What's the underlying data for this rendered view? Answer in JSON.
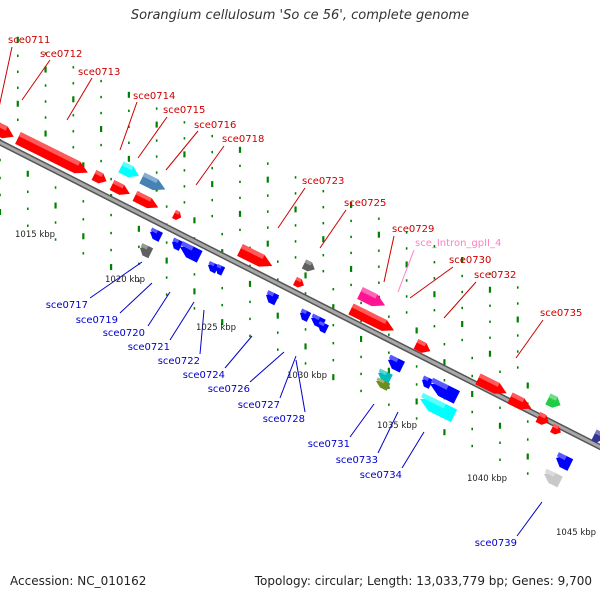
{
  "title": "Sorangium cellulosum 'So ce 56', complete genome",
  "footer": {
    "accession": "Accession: NC_010162",
    "info": "Topology: circular; Length: 13,033,779 bp; Genes: 9,700"
  },
  "colors": {
    "forward": "#ff0000",
    "reverse": "#0000ff",
    "backbone": "#808080",
    "tick": "#008000",
    "label_forward": "#cc0000",
    "label_reverse": "#0000cc",
    "label_intron": "#ff80c0"
  },
  "scale_labels": [
    "1015 kbp",
    "1020 kbp",
    "1025 kbp",
    "1030 kbp",
    "1035 kbp",
    "1040 kbp",
    "1045 kbp"
  ],
  "forward_genes": [
    "sce0711",
    "sce0712",
    "sce0713",
    "sce0714",
    "sce0715",
    "sce0716",
    "sce0718",
    "sce0723",
    "sce0725",
    "sce0729",
    "sce_Intron_gpII_4",
    "sce0730",
    "sce0732",
    "sce0735"
  ],
  "reverse_genes": [
    "sce0717",
    "sce0719",
    "sce0720",
    "sce0721",
    "sce0722",
    "sce0724",
    "sce0726",
    "sce0727",
    "sce0728",
    "sce0731",
    "sce0733",
    "sce0734",
    "sce0739"
  ]
}
